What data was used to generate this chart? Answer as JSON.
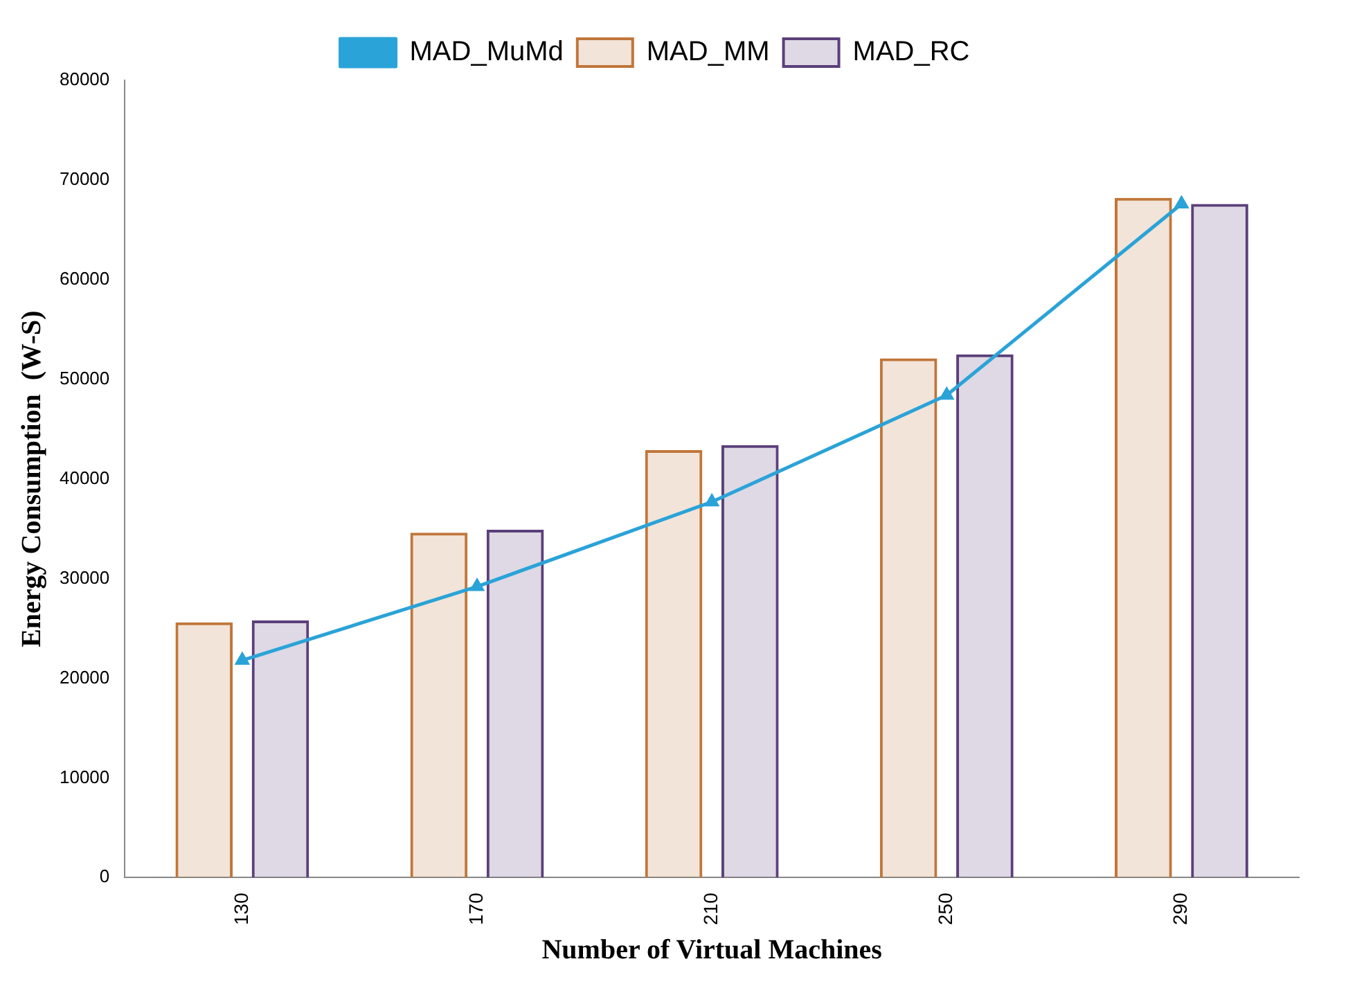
{
  "chart_data": {
    "type": "bar",
    "xlabel": "Number of Virtual Machines",
    "ylabel": "Energy Consumption  (W-S)",
    "categories": [
      "130",
      "170",
      "210",
      "250",
      "290"
    ],
    "series": [
      {
        "name": "MAD_MM",
        "color": "#c0763a",
        "values": [
          25600,
          34600,
          42900,
          52100,
          68200
        ]
      },
      {
        "name": "MAD_RC",
        "color": "#5b3f7a",
        "values": [
          25800,
          34900,
          43400,
          52500,
          67600
        ]
      },
      {
        "name": "MAD_MuMd",
        "type": "line",
        "color": "#2aa3d8",
        "values": [
          21800,
          29200,
          37700,
          48400,
          67600
        ],
        "marker": "triangle"
      }
    ],
    "ylim": [
      0,
      80000
    ],
    "yticks": [
      0,
      10000,
      20000,
      30000,
      40000,
      50000,
      60000,
      70000,
      80000
    ],
    "grid": false,
    "legend": "top"
  }
}
